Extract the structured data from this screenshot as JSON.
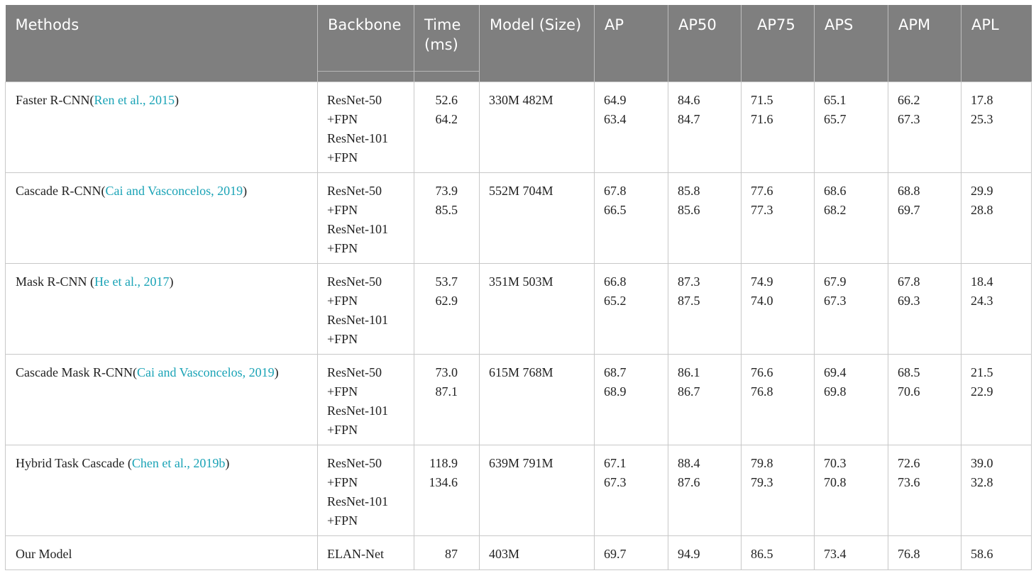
{
  "table": {
    "headers": {
      "methods": "Methods",
      "backbone": "Backbone",
      "time_line1": "Time",
      "time_line2": "(ms)",
      "model_size": "Model (Size)",
      "ap": "AP",
      "ap50": "AP50",
      "ap75": "AP75",
      "aps": "APS",
      "apm": "APM",
      "apl": "APL"
    },
    "rows": [
      {
        "method": "Faster R-CNN(",
        "citation": "Ren et al., 2015",
        "method_end": ")",
        "backbone": [
          "ResNet-50",
          "+FPN",
          "ResNet-101",
          "+FPN"
        ],
        "time": [
          "52.6",
          "64.2"
        ],
        "model_size": "330M 482M",
        "ap": [
          "64.9",
          "63.4"
        ],
        "ap50": [
          "84.6",
          "84.7"
        ],
        "ap75": [
          "71.5",
          "71.6"
        ],
        "aps": [
          "65.1",
          "65.7"
        ],
        "apm": [
          "66.2",
          "67.3"
        ],
        "apl": [
          "17.8",
          "25.3"
        ]
      },
      {
        "method": "Cascade R-CNN(",
        "citation": "Cai and Vasconcelos, 2019",
        "method_end": ")",
        "backbone": [
          "ResNet-50",
          "+FPN",
          "ResNet-101",
          "+FPN"
        ],
        "time": [
          "73.9",
          "85.5"
        ],
        "model_size": "552M 704M",
        "ap": [
          "67.8",
          "66.5"
        ],
        "ap50": [
          "85.8",
          "85.6"
        ],
        "ap75": [
          "77.6",
          "77.3"
        ],
        "aps": [
          "68.6",
          "68.2"
        ],
        "apm": [
          "68.8",
          "69.7"
        ],
        "apl": [
          "29.9",
          "28.8"
        ]
      },
      {
        "method": "Mask R-CNN (",
        "citation": "He et al., 2017",
        "method_end": ")",
        "backbone": [
          "ResNet-50",
          "+FPN",
          "ResNet-101",
          "+FPN"
        ],
        "time": [
          "53.7",
          "62.9"
        ],
        "model_size": "351M 503M",
        "ap": [
          "66.8",
          "65.2"
        ],
        "ap50": [
          "87.3",
          "87.5"
        ],
        "ap75": [
          "74.9",
          "74.0"
        ],
        "aps": [
          "67.9",
          "67.3"
        ],
        "apm": [
          "67.8",
          "69.3"
        ],
        "apl": [
          "18.4",
          "24.3"
        ]
      },
      {
        "method": "Cascade Mask R-CNN(",
        "citation": "Cai and Vasconcelos, 2019",
        "method_end": ")",
        "backbone": [
          "ResNet-50",
          "+FPN",
          "ResNet-101",
          "+FPN"
        ],
        "time": [
          "73.0",
          "87.1"
        ],
        "model_size": "615M 768M",
        "ap": [
          "68.7",
          "68.9"
        ],
        "ap50": [
          "86.1",
          "86.7"
        ],
        "ap75": [
          "76.6",
          "76.8"
        ],
        "aps": [
          "69.4",
          "69.8"
        ],
        "apm": [
          "68.5",
          "70.6"
        ],
        "apl": [
          "21.5",
          "22.9"
        ]
      },
      {
        "method": "Hybrid Task Cascade (",
        "citation": "Chen et al., 2019b",
        "method_end": ")",
        "backbone": [
          "ResNet-50",
          "+FPN",
          "ResNet-101",
          "+FPN"
        ],
        "time": [
          "118.9",
          "134.6"
        ],
        "model_size": "639M 791M",
        "ap": [
          "67.1",
          "67.3"
        ],
        "ap50": [
          "88.4",
          "87.6"
        ],
        "ap75": [
          "79.8",
          "79.3"
        ],
        "aps": [
          "70.3",
          "70.8"
        ],
        "apm": [
          "72.6",
          "73.6"
        ],
        "apl": [
          "39.0",
          "32.8"
        ]
      },
      {
        "method": "Our Model",
        "citation": "",
        "method_end": "",
        "backbone": [
          "ELAN-Net"
        ],
        "time": [
          "87"
        ],
        "model_size": "403M",
        "ap": [
          "69.7"
        ],
        "ap50": [
          "94.9"
        ],
        "ap75": [
          "86.5"
        ],
        "aps": [
          "73.4"
        ],
        "apm": [
          "76.8"
        ],
        "apl": [
          "58.6"
        ]
      }
    ]
  },
  "colors": {
    "header_bg": "#7f7f7f",
    "header_text": "#ffffff",
    "citation": "#1aa3b6",
    "grid": "#c8c8c8"
  }
}
